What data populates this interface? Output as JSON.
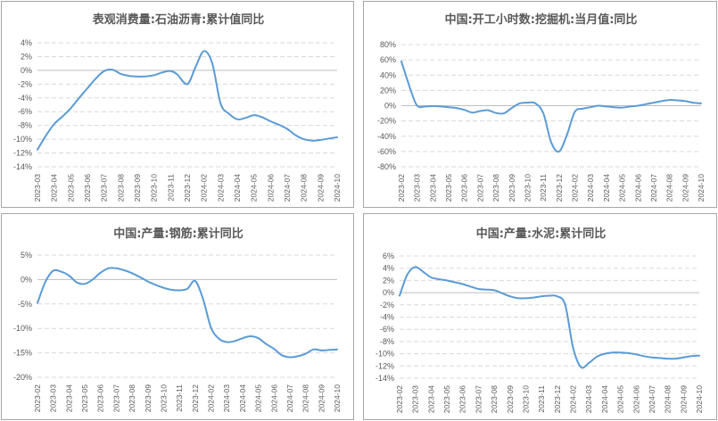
{
  "chart_data": [
    {
      "type": "line",
      "title": "表观消费量:石油沥青:累计值同比",
      "categories": [
        "2023-03",
        "2023-04",
        "2023-05",
        "2023-06",
        "2023-07",
        "2023-08",
        "2023-09",
        "2023-10",
        "2023-11",
        "2023-12",
        "2024-02",
        "2024-03",
        "2024-04",
        "2024-05",
        "2024-06",
        "2024-07",
        "2024-08",
        "2024-09",
        "2024-10"
      ],
      "x_points": [
        0,
        0.5,
        1,
        1.5,
        2,
        2.5,
        3,
        3.5,
        4,
        4.5,
        5,
        5.5,
        6,
        6.3,
        6.6,
        7,
        7.5,
        8,
        8.4,
        9,
        9.5,
        10,
        10.5,
        11,
        11.5,
        12,
        12.5,
        13,
        13.5,
        14,
        14.5,
        15,
        15.5,
        16,
        16.5,
        17,
        17.5,
        18
      ],
      "y_points": [
        -11.5,
        -9.5,
        -7.8,
        -6.7,
        -5.5,
        -4,
        -2.6,
        -1.2,
        -0.1,
        0.1,
        -0.5,
        -0.8,
        -0.9,
        -0.9,
        -0.85,
        -0.7,
        -0.3,
        -0.1,
        -0.6,
        -2,
        0.5,
        2.8,
        1,
        -4.8,
        -6.3,
        -7.1,
        -6.9,
        -6.5,
        -6.8,
        -7.4,
        -7.9,
        -8.5,
        -9.4,
        -10,
        -10.2,
        -10.1,
        -9.9,
        -9.7
      ],
      "ylim": [
        -14,
        4
      ],
      "yticks": [
        -14,
        -12,
        -10,
        -8,
        -6,
        -4,
        -2,
        0,
        2,
        4
      ],
      "ytick_labels": [
        "-14%",
        "-12%",
        "-10%",
        "-8%",
        "-6%",
        "-4%",
        "-2%",
        "0%",
        "2%",
        "4%"
      ],
      "grid": true,
      "color": "#5b9bd5"
    },
    {
      "type": "line",
      "title": "中国:开工小时数:挖掘机:当月值:同比",
      "categories": [
        "2023-02",
        "2023-03",
        "2023-04",
        "2023-05",
        "2023-06",
        "2023-07",
        "2023-08",
        "2023-09",
        "2023-10",
        "2023-11",
        "2023-12",
        "2024-02",
        "2024-03",
        "2024-04",
        "2024-05",
        "2024-06",
        "2024-07",
        "2024-08",
        "2024-09",
        "2024-10"
      ],
      "x_points": [
        0,
        0.6,
        1,
        1.5,
        2,
        2.5,
        3,
        3.5,
        4,
        4.5,
        5,
        5.5,
        6,
        6.5,
        7,
        7.5,
        8,
        8.5,
        9,
        9.5,
        10,
        10.5,
        11,
        11.5,
        12,
        12.5,
        13,
        13.5,
        14,
        14.5,
        15,
        15.5,
        16,
        16.5,
        17,
        17.5,
        18,
        18.5,
        19
      ],
      "y_points": [
        58,
        20,
        0,
        -1,
        -0.5,
        -1,
        -2,
        -3,
        -5.5,
        -9,
        -7,
        -6,
        -9.5,
        -10,
        -3,
        3,
        4,
        3,
        -10,
        -48,
        -60,
        -38,
        -8,
        -4,
        -2,
        0,
        -1,
        -2,
        -2.5,
        -1,
        0,
        2,
        4,
        6,
        7.5,
        7,
        6,
        4,
        3
      ],
      "ylim": [
        -80,
        80
      ],
      "yticks": [
        -80,
        -60,
        -40,
        -20,
        0,
        20,
        40,
        60,
        80
      ],
      "ytick_labels": [
        "-80%",
        "-60%",
        "-40%",
        "-20%",
        "0%",
        "20%",
        "40%",
        "60%",
        "80%"
      ],
      "grid": true,
      "color": "#5b9bd5"
    },
    {
      "type": "line",
      "title": "中国:产量:钢筋:累计同比",
      "categories": [
        "2023-02",
        "2023-03",
        "2023-04",
        "2023-05",
        "2023-06",
        "2023-07",
        "2023-08",
        "2023-09",
        "2023-10",
        "2023-11",
        "2023-12",
        "2024-02",
        "2024-03",
        "2024-04",
        "2024-05",
        "2024-06",
        "2024-07",
        "2024-08",
        "2024-09",
        "2024-10"
      ],
      "x_points": [
        0,
        0.5,
        1,
        1.5,
        2,
        2.5,
        3,
        3.5,
        4,
        4.5,
        5,
        5.5,
        6,
        6.5,
        7,
        7.5,
        8,
        8.5,
        9,
        9.5,
        10,
        10.5,
        11,
        11.5,
        12,
        12.5,
        13,
        13.5,
        14,
        14.5,
        15,
        15.5,
        16,
        16.5,
        17,
        17.5,
        18,
        18.5,
        19
      ],
      "y_points": [
        -4.8,
        -0.5,
        1.8,
        1.6,
        0.8,
        -0.6,
        -0.9,
        0,
        1.4,
        2.3,
        2.3,
        1.9,
        1.3,
        0.5,
        -0.4,
        -1.1,
        -1.7,
        -2.1,
        -2.2,
        -1.9,
        -0.3,
        -4,
        -9.8,
        -12.1,
        -12.8,
        -12.6,
        -12,
        -11.6,
        -12,
        -13.2,
        -14.2,
        -15.5,
        -15.9,
        -15.7,
        -15.2,
        -14.3,
        -14.5,
        -14.4,
        -14.3
      ],
      "ylim": [
        -20,
        5
      ],
      "yticks": [
        -20,
        -15,
        -10,
        -5,
        0,
        5
      ],
      "ytick_labels": [
        "-20%",
        "-15%",
        "-10%",
        "-5%",
        "0%",
        "5%"
      ],
      "grid": true,
      "color": "#5b9bd5"
    },
    {
      "type": "line",
      "title": "中国:产量:水泥:累计同比",
      "categories": [
        "2023-02",
        "2023-03",
        "2023-04",
        "2023-05",
        "2023-06",
        "2023-07",
        "2023-08",
        "2023-09",
        "2023-10",
        "2023-11",
        "2023-12",
        "2024-02",
        "2024-03",
        "2024-04",
        "2024-05",
        "2024-06",
        "2024-07",
        "2024-08",
        "2024-09",
        "2024-10"
      ],
      "x_points": [
        0,
        0.5,
        1,
        1.5,
        2,
        2.5,
        3,
        3.5,
        4,
        4.5,
        5,
        5.5,
        6,
        6.5,
        7,
        7.5,
        8,
        8.5,
        9,
        9.5,
        10,
        10.5,
        11,
        11.5,
        12,
        12.5,
        13,
        13.5,
        14,
        14.5,
        15,
        15.5,
        16,
        16.5,
        17,
        17.5,
        18,
        18.5,
        19
      ],
      "y_points": [
        -0.5,
        3,
        4.2,
        3.4,
        2.5,
        2.2,
        2,
        1.7,
        1.4,
        1,
        0.6,
        0.5,
        0.4,
        -0.1,
        -0.6,
        -0.9,
        -0.9,
        -0.8,
        -0.6,
        -0.5,
        -0.6,
        -2,
        -9,
        -12.2,
        -11.5,
        -10.5,
        -10,
        -9.8,
        -9.8,
        -9.9,
        -10.1,
        -10.4,
        -10.6,
        -10.7,
        -10.8,
        -10.8,
        -10.6,
        -10.4,
        -10.3
      ],
      "ylim": [
        -14,
        6
      ],
      "yticks": [
        -14,
        -12,
        -10,
        -8,
        -6,
        -4,
        -2,
        0,
        2,
        4,
        6
      ],
      "ytick_labels": [
        "-14%",
        "-12%",
        "-10%",
        "-8%",
        "-6%",
        "-4%",
        "-2%",
        "0%",
        "2%",
        "4%",
        "6%"
      ],
      "grid": true,
      "color": "#5b9bd5"
    }
  ]
}
